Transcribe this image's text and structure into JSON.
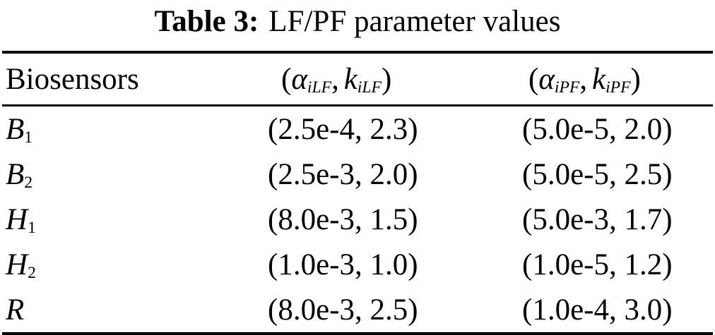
{
  "caption": {
    "label": "Table 3:",
    "text": "LF/PF parameter values"
  },
  "table": {
    "header": {
      "col1": "Biosensors",
      "col2": {
        "open": "(",
        "alpha": "α",
        "alpha_sub": "iLF",
        "comma": ",",
        "k": "k",
        "k_sub": "iLF",
        "close": ")"
      },
      "col3": {
        "open": "(",
        "alpha": "α",
        "alpha_sub": "iPF",
        "comma": ",",
        "k": "k",
        "k_sub": "iPF",
        "close": ")"
      }
    },
    "rows": [
      {
        "label_base": "B",
        "label_sub": "1",
        "lf": "(2.5e-4, 2.3)",
        "pf": "(5.0e-5, 2.0)"
      },
      {
        "label_base": "B",
        "label_sub": "2",
        "lf": "(2.5e-3, 2.0)",
        "pf": "(5.0e-5, 2.5)"
      },
      {
        "label_base": "H",
        "label_sub": "1",
        "lf": "(8.0e-3, 1.5)",
        "pf": "(5.0e-3, 1.7)"
      },
      {
        "label_base": "H",
        "label_sub": "2",
        "lf": "(1.0e-3, 1.0)",
        "pf": "(1.0e-5, 1.2)"
      },
      {
        "label_base": "R",
        "label_sub": "",
        "lf": "(8.0e-3, 2.5)",
        "pf": "(1.0e-4, 3.0)"
      }
    ]
  }
}
